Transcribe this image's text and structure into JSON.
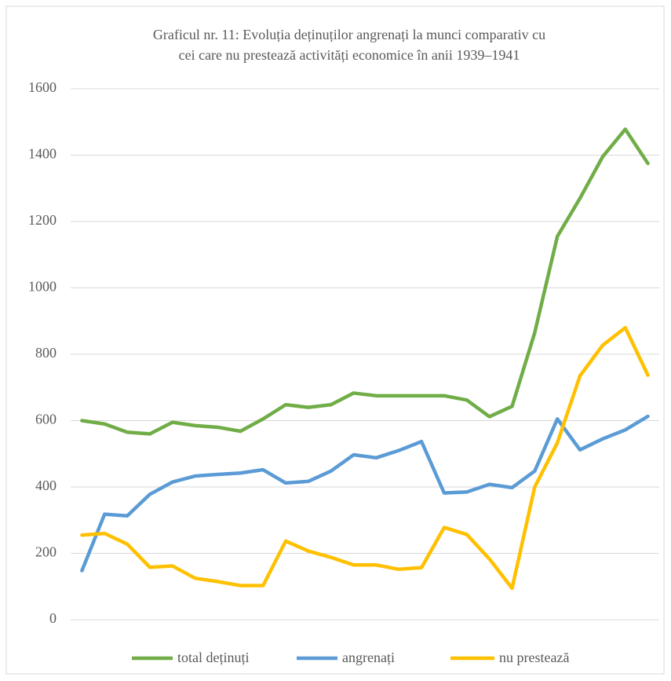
{
  "chart_data": {
    "type": "line",
    "title": [
      "Graficul nr. 11: Evoluția deținuților angrenați  la munci comparativ cu",
      "cei care nu prestează activități economice în anii 1939–1941"
    ],
    "categories": [
      null,
      null,
      null,
      null,
      null,
      null,
      null,
      null,
      null,
      null,
      null,
      null,
      null,
      null,
      null,
      null,
      null,
      null,
      null,
      null,
      null,
      null,
      null,
      null,
      null,
      null
    ],
    "series": [
      {
        "name": "total deținuți",
        "color": "#70ad47",
        "values": [
          600,
          590,
          565,
          560,
          595,
          585,
          580,
          568,
          605,
          648,
          640,
          648,
          683,
          675,
          675,
          675,
          675,
          662,
          612,
          643,
          865,
          1155,
          1270,
          1395,
          1478,
          1375
        ]
      },
      {
        "name": "angrenați",
        "color": "#5b9bd5",
        "values": [
          148,
          318,
          313,
          378,
          415,
          433,
          438,
          442,
          452,
          412,
          417,
          448,
          497,
          488,
          510,
          537,
          382,
          385,
          408,
          398,
          448,
          605,
          512,
          545,
          572,
          613
        ]
      },
      {
        "name": "nu prestează",
        "color": "#ffc000",
        "values": [
          255,
          260,
          228,
          158,
          162,
          125,
          115,
          103,
          103,
          237,
          207,
          188,
          165,
          165,
          152,
          157,
          278,
          257,
          183,
          95,
          400,
          533,
          735,
          827,
          880,
          737
        ]
      }
    ],
    "ylim": [
      0,
      1600
    ],
    "yticks": [
      0,
      200,
      400,
      600,
      800,
      1000,
      1200,
      1400,
      1600
    ],
    "grid": true,
    "legend": "bottom"
  }
}
